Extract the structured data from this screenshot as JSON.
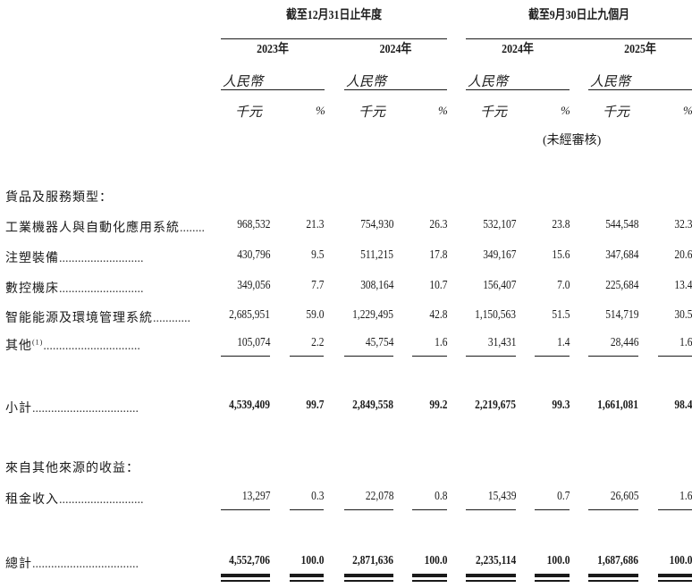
{
  "header": {
    "group1": "截至12月31日止年度",
    "group2": "截至9月30日止九個月",
    "years": [
      "2023年",
      "2024年",
      "2024年",
      "2025年"
    ],
    "currency": "人民幣",
    "thousand": "千元",
    "percent": "%",
    "unaudited": "(未經審核)"
  },
  "sections": {
    "goods_heading": "貨品及服務類型：",
    "other_heading": "來自其他來源的收益："
  },
  "rows": [
    {
      "label": "工業機器人與自動化應用系統",
      "dots": "........",
      "values": [
        "968,532",
        "21.3",
        "754,930",
        "26.3",
        "532,107",
        "23.8",
        "544,548",
        "32.3"
      ]
    },
    {
      "label": "注塑裝備",
      "dots": "...........................",
      "values": [
        "430,796",
        "9.5",
        "511,215",
        "17.8",
        "349,167",
        "15.6",
        "347,684",
        "20.6"
      ]
    },
    {
      "label": "數控機床",
      "dots": "...........................",
      "values": [
        "349,056",
        "7.7",
        "308,164",
        "10.7",
        "156,407",
        "7.0",
        "225,684",
        "13.4"
      ]
    },
    {
      "label": "智能能源及環境管理系統",
      "dots": "............",
      "values": [
        "2,685,951",
        "59.0",
        "1,229,495",
        "42.8",
        "1,150,563",
        "51.5",
        "514,719",
        "30.5"
      ]
    },
    {
      "label": "其他",
      "note": "(1)",
      "dots": "...............................",
      "values": [
        "105,074",
        "2.2",
        "45,754",
        "1.6",
        "31,431",
        "1.4",
        "28,446",
        "1.6"
      ]
    }
  ],
  "subtotal": {
    "label": "小計",
    "dots": "..................................",
    "values": [
      "4,539,409",
      "99.7",
      "2,849,558",
      "99.2",
      "2,219,675",
      "99.3",
      "1,661,081",
      "98.4"
    ]
  },
  "rental": {
    "label": "租金收入",
    "dots": "...........................",
    "values": [
      "13,297",
      "0.3",
      "22,078",
      "0.8",
      "15,439",
      "0.7",
      "26,605",
      "1.6"
    ]
  },
  "total": {
    "label": "總計",
    "dots": "..................................",
    "values": [
      "4,552,706",
      "100.0",
      "2,871,636",
      "100.0",
      "2,235,114",
      "100.0",
      "1,687,686",
      "100.0"
    ]
  }
}
